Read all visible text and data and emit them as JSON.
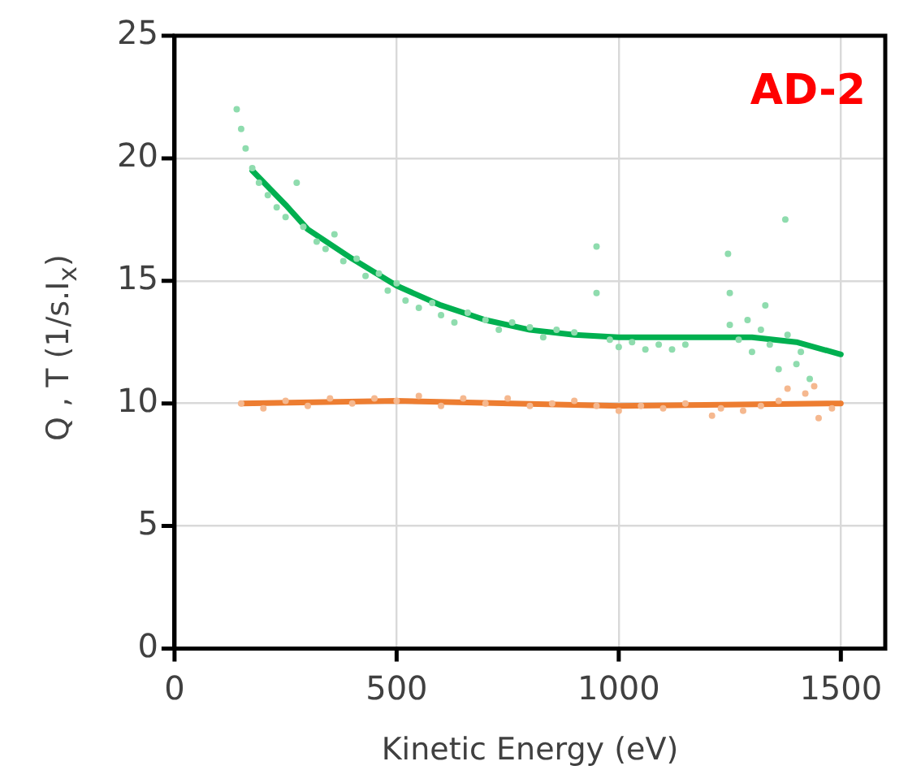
{
  "chart_data": {
    "type": "scatter",
    "xlabel": "Kinetic Energy (eV)",
    "ylabel": "Q , T (1/s.I$_{x}$)",
    "annotations": [
      "AD-2"
    ],
    "xlim": [
      0,
      1600
    ],
    "xticks": [
      0,
      500,
      1000,
      1500
    ],
    "ylim": [
      0,
      25
    ],
    "yticks": [
      0,
      5,
      10,
      15,
      20,
      25
    ],
    "grid": true,
    "legend": false,
    "marker": "circle",
    "series": [
      {
        "color": "#8fdcae",
        "x": [
          140,
          150,
          160,
          175,
          190,
          210,
          230,
          250,
          275,
          290,
          320,
          340,
          360,
          380,
          410,
          430,
          460,
          480,
          500,
          520,
          550,
          580,
          600,
          630,
          660,
          700,
          730,
          760,
          800,
          830,
          860,
          900,
          950,
          950,
          980,
          1000,
          1030,
          1060,
          1090,
          1120,
          1150,
          1246,
          1250,
          1250,
          1270,
          1290,
          1300,
          1320,
          1330,
          1340,
          1360,
          1375,
          1380,
          1400,
          1410,
          1430
        ],
        "values": [
          22.0,
          21.2,
          20.4,
          19.6,
          19.0,
          18.5,
          18.0,
          17.6,
          19.0,
          17.2,
          16.6,
          16.3,
          16.9,
          15.8,
          15.9,
          15.2,
          15.3,
          14.6,
          14.9,
          14.2,
          13.9,
          14.1,
          13.6,
          13.3,
          13.7,
          13.4,
          13.0,
          13.3,
          13.1,
          12.7,
          13.0,
          12.9,
          16.4,
          14.5,
          12.6,
          12.3,
          12.5,
          12.2,
          12.4,
          12.2,
          12.4,
          16.1,
          14.5,
          13.2,
          12.6,
          13.4,
          12.1,
          13.0,
          14.0,
          12.4,
          11.4,
          17.5,
          12.8,
          11.6,
          12.1,
          11.0
        ]
      },
      {
        "color": "#f5b88f",
        "x": [
          150,
          200,
          250,
          300,
          350,
          400,
          450,
          500,
          550,
          600,
          650,
          700,
          750,
          800,
          850,
          900,
          950,
          1000,
          1050,
          1100,
          1150,
          1210,
          1230,
          1280,
          1320,
          1360,
          1380,
          1420,
          1440,
          1450,
          1480
        ],
        "values": [
          10.0,
          9.8,
          10.1,
          9.9,
          10.2,
          10.0,
          10.2,
          10.1,
          10.3,
          9.9,
          10.2,
          10.0,
          10.2,
          9.9,
          10.0,
          10.1,
          9.9,
          9.7,
          9.9,
          9.8,
          10.0,
          9.5,
          9.8,
          9.7,
          9.9,
          10.1,
          10.6,
          10.4,
          10.7,
          9.4,
          9.8
        ]
      },
      {
        "type": "line",
        "marker": "none",
        "color": "#00b050",
        "x": [
          175,
          250,
          300,
          400,
          500,
          600,
          700,
          800,
          900,
          1000,
          1100,
          1200,
          1300,
          1400,
          1500
        ],
        "values": [
          19.5,
          18.1,
          17.1,
          15.9,
          14.8,
          14.0,
          13.4,
          13.0,
          12.8,
          12.7,
          12.7,
          12.7,
          12.7,
          12.5,
          12.0
        ]
      },
      {
        "type": "line",
        "marker": "none",
        "color": "#ed7d31",
        "x": [
          150,
          500,
          1000,
          1500
        ],
        "values": [
          10.0,
          10.1,
          9.9,
          10.0
        ]
      }
    ]
  }
}
